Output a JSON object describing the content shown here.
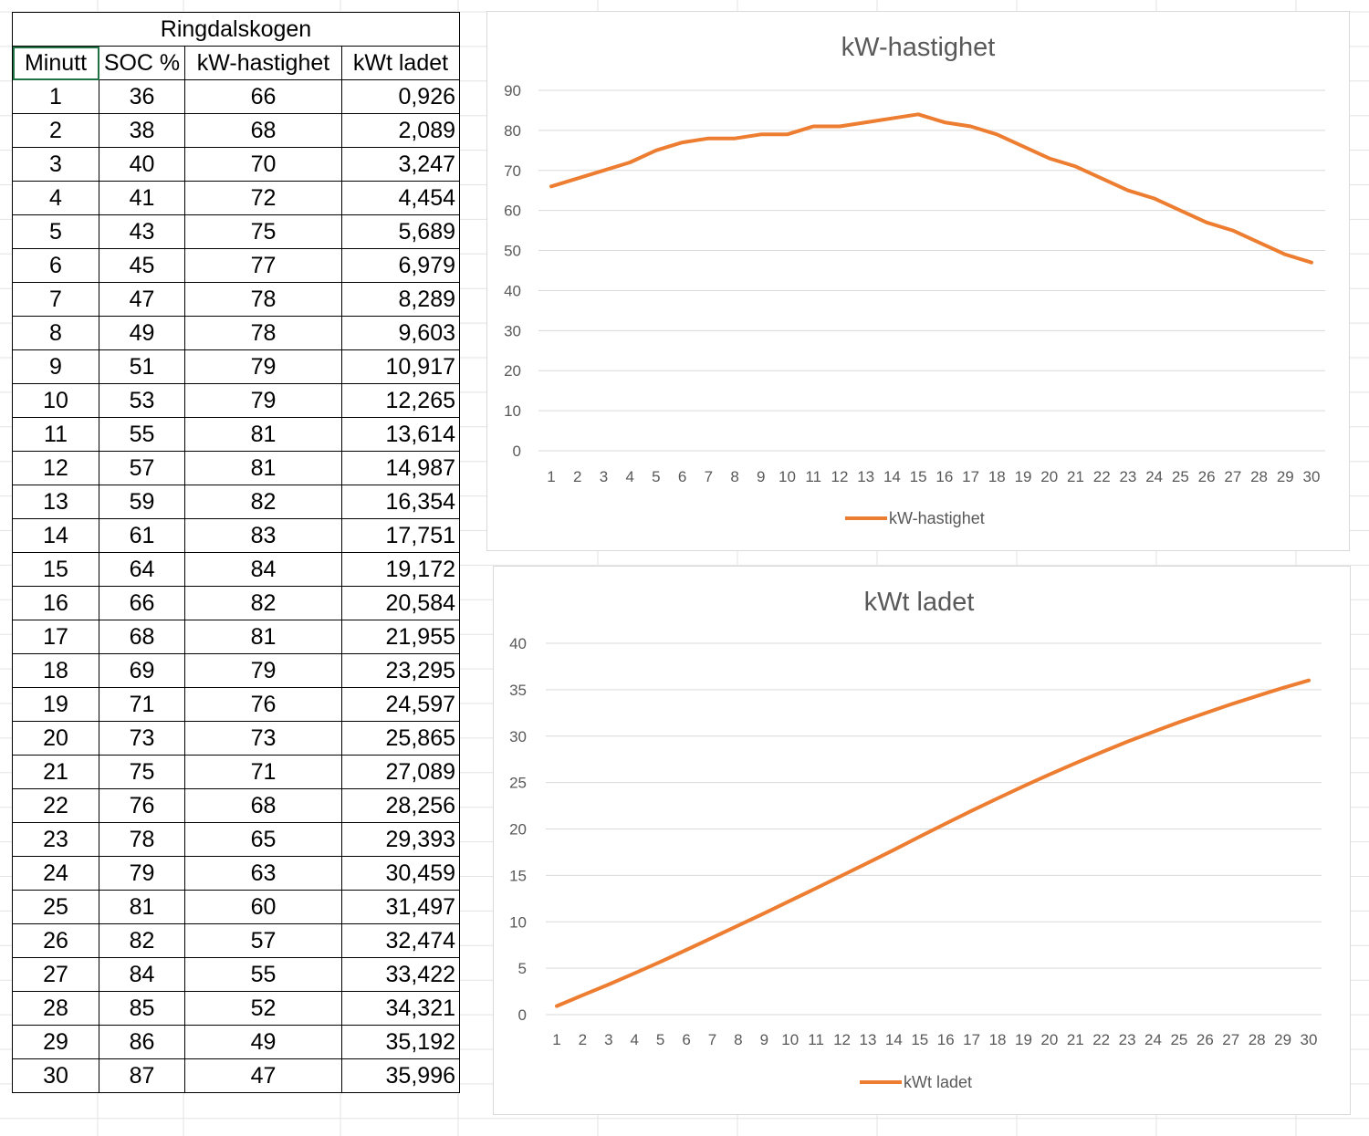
{
  "table": {
    "title": "Ringdalskogen",
    "headers": [
      "Minutt",
      "SOC %",
      "kW-hastighet",
      "kWt ladet"
    ],
    "rows": [
      [
        "1",
        "36",
        "66",
        "0,926"
      ],
      [
        "2",
        "38",
        "68",
        "2,089"
      ],
      [
        "3",
        "40",
        "70",
        "3,247"
      ],
      [
        "4",
        "41",
        "72",
        "4,454"
      ],
      [
        "5",
        "43",
        "75",
        "5,689"
      ],
      [
        "6",
        "45",
        "77",
        "6,979"
      ],
      [
        "7",
        "47",
        "78",
        "8,289"
      ],
      [
        "8",
        "49",
        "78",
        "9,603"
      ],
      [
        "9",
        "51",
        "79",
        "10,917"
      ],
      [
        "10",
        "53",
        "79",
        "12,265"
      ],
      [
        "11",
        "55",
        "81",
        "13,614"
      ],
      [
        "12",
        "57",
        "81",
        "14,987"
      ],
      [
        "13",
        "59",
        "82",
        "16,354"
      ],
      [
        "14",
        "61",
        "83",
        "17,751"
      ],
      [
        "15",
        "64",
        "84",
        "19,172"
      ],
      [
        "16",
        "66",
        "82",
        "20,584"
      ],
      [
        "17",
        "68",
        "81",
        "21,955"
      ],
      [
        "18",
        "69",
        "79",
        "23,295"
      ],
      [
        "19",
        "71",
        "76",
        "24,597"
      ],
      [
        "20",
        "73",
        "73",
        "25,865"
      ],
      [
        "21",
        "75",
        "71",
        "27,089"
      ],
      [
        "22",
        "76",
        "68",
        "28,256"
      ],
      [
        "23",
        "78",
        "65",
        "29,393"
      ],
      [
        "24",
        "79",
        "63",
        "30,459"
      ],
      [
        "25",
        "81",
        "60",
        "31,497"
      ],
      [
        "26",
        "82",
        "57",
        "32,474"
      ],
      [
        "27",
        "84",
        "55",
        "33,422"
      ],
      [
        "28",
        "85",
        "52",
        "34,321"
      ],
      [
        "29",
        "86",
        "49",
        "35,192"
      ],
      [
        "30",
        "87",
        "47",
        "35,996"
      ]
    ]
  },
  "chart_data": [
    {
      "type": "line",
      "title": "kW-hastighet",
      "xlabel": "",
      "ylabel": "",
      "categories": [
        "1",
        "2",
        "3",
        "4",
        "5",
        "6",
        "7",
        "8",
        "9",
        "10",
        "11",
        "12",
        "13",
        "14",
        "15",
        "16",
        "17",
        "18",
        "19",
        "20",
        "21",
        "22",
        "23",
        "24",
        "25",
        "26",
        "27",
        "28",
        "29",
        "30"
      ],
      "series": [
        {
          "name": "kW-hastighet",
          "values": [
            66,
            68,
            70,
            72,
            75,
            77,
            78,
            78,
            79,
            79,
            81,
            81,
            82,
            83,
            84,
            82,
            81,
            79,
            76,
            73,
            71,
            68,
            65,
            63,
            60,
            57,
            55,
            52,
            49,
            47
          ]
        }
      ],
      "yticks": [
        "0",
        "10",
        "20",
        "30",
        "40",
        "50",
        "60",
        "70",
        "80",
        "90"
      ],
      "ylim": [
        0,
        90
      ],
      "grid": true,
      "legend": "bottom",
      "color": "#ed7d31"
    },
    {
      "type": "line",
      "title": "kWt ladet",
      "xlabel": "",
      "ylabel": "",
      "categories": [
        "1",
        "2",
        "3",
        "4",
        "5",
        "6",
        "7",
        "8",
        "9",
        "10",
        "11",
        "12",
        "13",
        "14",
        "15",
        "16",
        "17",
        "18",
        "19",
        "20",
        "21",
        "22",
        "23",
        "24",
        "25",
        "26",
        "27",
        "28",
        "29",
        "30"
      ],
      "series": [
        {
          "name": "kWt ladet",
          "values": [
            0.926,
            2.089,
            3.247,
            4.454,
            5.689,
            6.979,
            8.289,
            9.603,
            10.917,
            12.265,
            13.614,
            14.987,
            16.354,
            17.751,
            19.172,
            20.584,
            21.955,
            23.295,
            24.597,
            25.865,
            27.089,
            28.256,
            29.393,
            30.459,
            31.497,
            32.474,
            33.422,
            34.321,
            35.192,
            35.996
          ]
        }
      ],
      "yticks": [
        "0",
        "5",
        "10",
        "15",
        "20",
        "25",
        "30",
        "35",
        "40"
      ],
      "ylim": [
        0,
        40
      ],
      "grid": true,
      "legend": "bottom",
      "color": "#ed7d31"
    }
  ]
}
